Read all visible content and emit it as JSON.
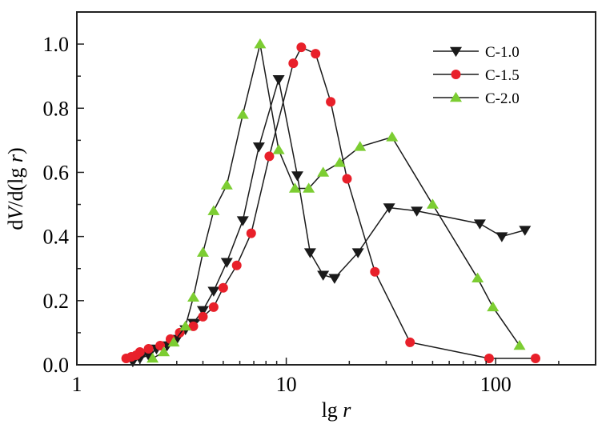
{
  "chart_data": {
    "type": "line",
    "xscale": "log",
    "xlim": [
      1,
      300
    ],
    "ylim": [
      0,
      1.1
    ],
    "xlabel": {
      "main": "lg",
      "var": "r"
    },
    "ylabel": {
      "p1": "d",
      "var1": "V",
      "p2": "/d(lg ",
      "var2": "r",
      "p3": ")"
    },
    "xticks": [
      {
        "value": 1,
        "label": "1"
      },
      {
        "value": 10,
        "label": "10"
      },
      {
        "value": 100,
        "label": "100"
      }
    ],
    "yticks": [
      {
        "value": 0,
        "label": "0.0"
      },
      {
        "value": 0.2,
        "label": "0.2"
      },
      {
        "value": 0.4,
        "label": "0.4"
      },
      {
        "value": 0.6,
        "label": "0.6"
      },
      {
        "value": 0.8,
        "label": "0.8"
      },
      {
        "value": 1.0,
        "label": "1.0"
      }
    ],
    "legend_position": "top-right",
    "series": [
      {
        "name": "C-1.0",
        "marker": "triangle-down",
        "color": "#1a1a1a",
        "points": [
          [
            1.85,
            0.01
          ],
          [
            2.0,
            0.02
          ],
          [
            2.2,
            0.03
          ],
          [
            2.4,
            0.05
          ],
          [
            2.7,
            0.06
          ],
          [
            3.0,
            0.08
          ],
          [
            3.3,
            0.11
          ],
          [
            3.6,
            0.13
          ],
          [
            4.0,
            0.17
          ],
          [
            4.5,
            0.23
          ],
          [
            5.2,
            0.32
          ],
          [
            6.2,
            0.45
          ],
          [
            7.4,
            0.68
          ],
          [
            9.2,
            0.89
          ],
          [
            11.3,
            0.59
          ],
          [
            13.0,
            0.35
          ],
          [
            15.0,
            0.28
          ],
          [
            17.0,
            0.27
          ],
          [
            22.0,
            0.35
          ],
          [
            31.0,
            0.49
          ],
          [
            42.0,
            0.48
          ],
          [
            84.0,
            0.44
          ],
          [
            107.0,
            0.4
          ],
          [
            138.0,
            0.42
          ]
        ]
      },
      {
        "name": "C-1.5",
        "marker": "circle",
        "color": "#e8202a",
        "points": [
          [
            1.72,
            0.02
          ],
          [
            1.82,
            0.025
          ],
          [
            1.92,
            0.03
          ],
          [
            2.0,
            0.04
          ],
          [
            2.2,
            0.05
          ],
          [
            2.5,
            0.06
          ],
          [
            2.8,
            0.08
          ],
          [
            3.1,
            0.1
          ],
          [
            3.6,
            0.12
          ],
          [
            4.0,
            0.15
          ],
          [
            4.5,
            0.18
          ],
          [
            5.0,
            0.24
          ],
          [
            5.8,
            0.31
          ],
          [
            6.8,
            0.41
          ],
          [
            8.3,
            0.65
          ],
          [
            10.8,
            0.94
          ],
          [
            11.8,
            0.99
          ],
          [
            13.8,
            0.97
          ],
          [
            16.3,
            0.82
          ],
          [
            19.5,
            0.58
          ],
          [
            26.5,
            0.29
          ],
          [
            39.0,
            0.07
          ],
          [
            93.0,
            0.02
          ],
          [
            155.0,
            0.02
          ]
        ]
      },
      {
        "name": "C-2.0",
        "marker": "triangle-up",
        "color": "#7ccd32",
        "points": [
          [
            2.3,
            0.02
          ],
          [
            2.6,
            0.04
          ],
          [
            2.9,
            0.07
          ],
          [
            3.3,
            0.12
          ],
          [
            3.6,
            0.21
          ],
          [
            4.0,
            0.35
          ],
          [
            4.5,
            0.48
          ],
          [
            5.2,
            0.56
          ],
          [
            6.2,
            0.78
          ],
          [
            7.5,
            1.0
          ],
          [
            9.2,
            0.67
          ],
          [
            11.0,
            0.55
          ],
          [
            12.8,
            0.55
          ],
          [
            15.0,
            0.6
          ],
          [
            18.0,
            0.63
          ],
          [
            22.5,
            0.68
          ],
          [
            32.0,
            0.71
          ],
          [
            50.0,
            0.5
          ],
          [
            82.0,
            0.27
          ],
          [
            97.0,
            0.18
          ],
          [
            130.0,
            0.06
          ]
        ]
      }
    ]
  }
}
